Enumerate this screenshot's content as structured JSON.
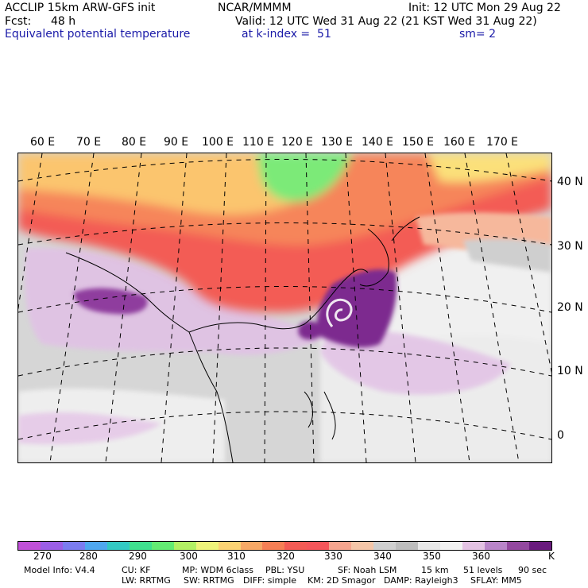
{
  "header": {
    "model": "ACCLIP 15km ARW-GFS init",
    "org": "NCAR/MMMM",
    "init": "Init: 12 UTC Mon 29 Aug 22",
    "fcst_label": "Fcst:",
    "fcst_value": "48 h",
    "valid": "Valid: 12 UTC Wed 31 Aug 22 (21 KST Wed 31 Aug 22)",
    "field": "Equivalent potential temperature",
    "level": "at k-index =  51",
    "smooth": "sm= 2"
  },
  "map": {
    "lon_labels": [
      "60 E",
      "70 E",
      "80 E",
      "90 E",
      "100 E",
      "110 E",
      "120 E",
      "130 E",
      "140 E",
      "150 E",
      "160 E",
      "170 E"
    ],
    "lat_labels": [
      "40 N",
      "30 N",
      "20 N",
      "10 N",
      "0"
    ]
  },
  "colorbar": {
    "colors": [
      "#c050d8",
      "#9b5ee6",
      "#7b7cf0",
      "#4fa7ef",
      "#33c9c3",
      "#3fe08e",
      "#63eb73",
      "#b2f064",
      "#eef37a",
      "#fbd273",
      "#f7a866",
      "#f67f55",
      "#f35b55",
      "#f5565a",
      "#f6a58e",
      "#f5c6a8",
      "#cfcfcf",
      "#bdbdbd",
      "#e8e8e8",
      "#f2f2f2",
      "#e3c2e3",
      "#b985c9",
      "#93489f",
      "#6a1b7e"
    ],
    "ticks": [
      "270",
      "280",
      "290",
      "300",
      "310",
      "320",
      "330",
      "340",
      "350",
      "360"
    ],
    "unit": "K"
  },
  "footer": {
    "line1": [
      "Model Info: V4.4",
      "CU: KF",
      "MP: WDM 6class",
      "PBL: YSU",
      "SF: Noah LSM",
      "15 km",
      "51 levels",
      "90 sec"
    ],
    "line2": [
      "LW: RRTMG",
      "SW: RRTMG",
      "DIFF: simple",
      "KM: 2D Smagor",
      "DAMP: Rayleigh3",
      "SFLAY: MM5"
    ]
  }
}
